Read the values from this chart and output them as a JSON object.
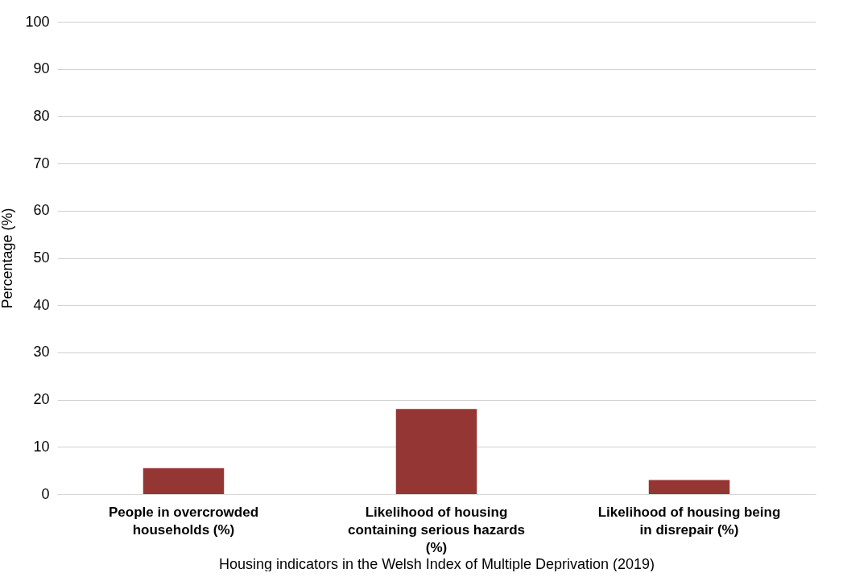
{
  "chart_data": {
    "type": "bar",
    "xlabel": "Housing indicators in the Welsh Index of Multiple Deprivation (2019)",
    "ylabel": "Percentage (%)",
    "categories": [
      "People in overcrowded households (%)",
      "Likelihood of housing containing serious hazards (%)",
      "Likelihood of housing being in disrepair (%)"
    ],
    "values": [
      5.5,
      18,
      3
    ],
    "color": "#943634",
    "ylim": [
      0,
      100
    ],
    "yticks": [
      0,
      10,
      20,
      30,
      40,
      50,
      60,
      70,
      80,
      90,
      100
    ],
    "grid": "y"
  }
}
